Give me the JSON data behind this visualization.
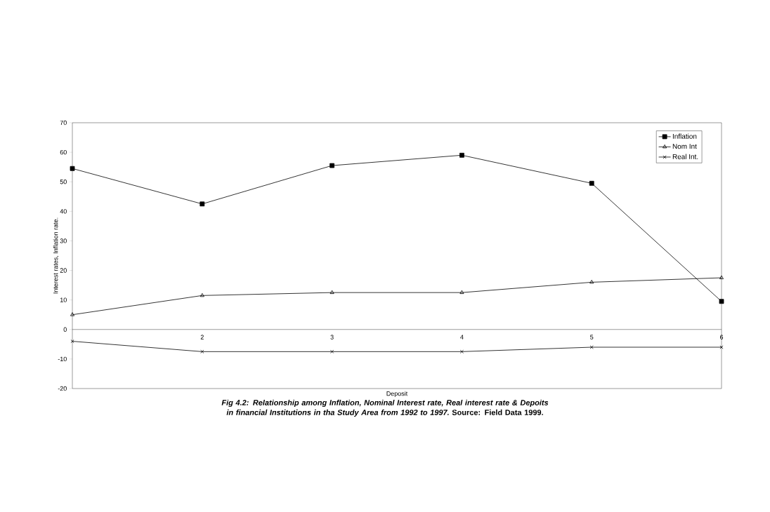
{
  "chart_data": {
    "type": "line",
    "xlabel": "Deposit",
    "ylabel": "Interest rates, Inflation rate.",
    "categories": [
      null,
      "2",
      "3",
      "4",
      "5",
      "6"
    ],
    "series": [
      {
        "name": "Inflation",
        "color": "#000000",
        "marker": "square",
        "values": [
          54.5,
          42.5,
          55.5,
          59,
          49.5,
          9.5
        ]
      },
      {
        "name": "Nom Int",
        "color": "#000000",
        "marker": "triangle",
        "values": [
          5,
          11.5,
          12.5,
          12.5,
          16,
          17.5
        ]
      },
      {
        "name": "Real Int.",
        "color": "#000000",
        "marker": "cross",
        "values": [
          -4,
          -7.5,
          -7.5,
          -7.5,
          -6,
          -6
        ]
      }
    ],
    "ylim": [
      -20,
      70
    ],
    "yticks": [
      -20,
      -10,
      0,
      10,
      20,
      30,
      40,
      50,
      60,
      70
    ],
    "grid": false,
    "legend": "top right",
    "line_style": "solid",
    "annotations": [
      "Fig 4.2: Relationship among Inflation, Nominal Interest rate, Real interest rate & Depoits in financial Institutions in tha Study Area from 1992 to 1997.",
      "Source: Field Data 1999."
    ]
  }
}
